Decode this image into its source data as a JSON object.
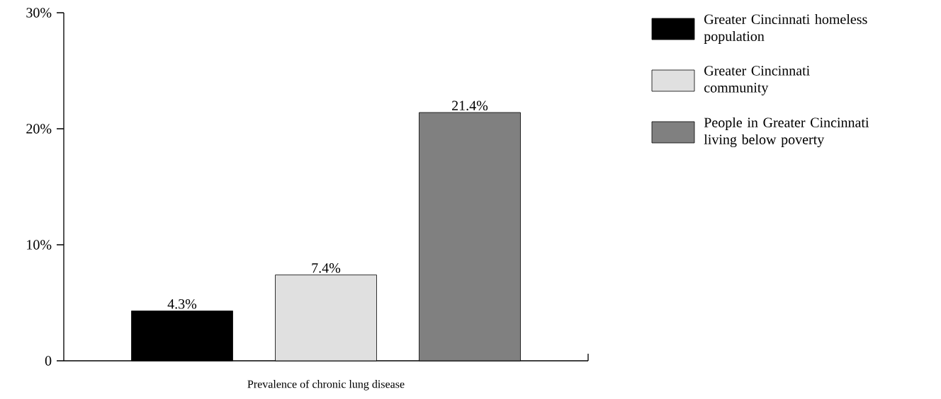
{
  "chart_data": {
    "type": "bar",
    "categories": [
      "Prevalence of chronic lung disease"
    ],
    "series": [
      {
        "name": "Greater Cincinnati homeless population",
        "color": "#000000",
        "values": [
          4.3
        ],
        "value_labels": [
          "4.3%"
        ]
      },
      {
        "name": "Greater Cincinnati community",
        "color": "#e0e0e0",
        "values": [
          7.4
        ],
        "value_labels": [
          "7.4%"
        ]
      },
      {
        "name": "People in Greater Cincinnati living below poverty",
        "color": "#808080",
        "values": [
          21.4
        ],
        "value_labels": [
          "21.4%"
        ]
      }
    ],
    "ylim": [
      0,
      30
    ],
    "yticks": [
      0,
      {
        "value": 10,
        "label": "10%"
      },
      {
        "value": 20,
        "label": "20%"
      },
      {
        "value": 30,
        "label": "30%"
      }
    ],
    "legend": "top right"
  }
}
